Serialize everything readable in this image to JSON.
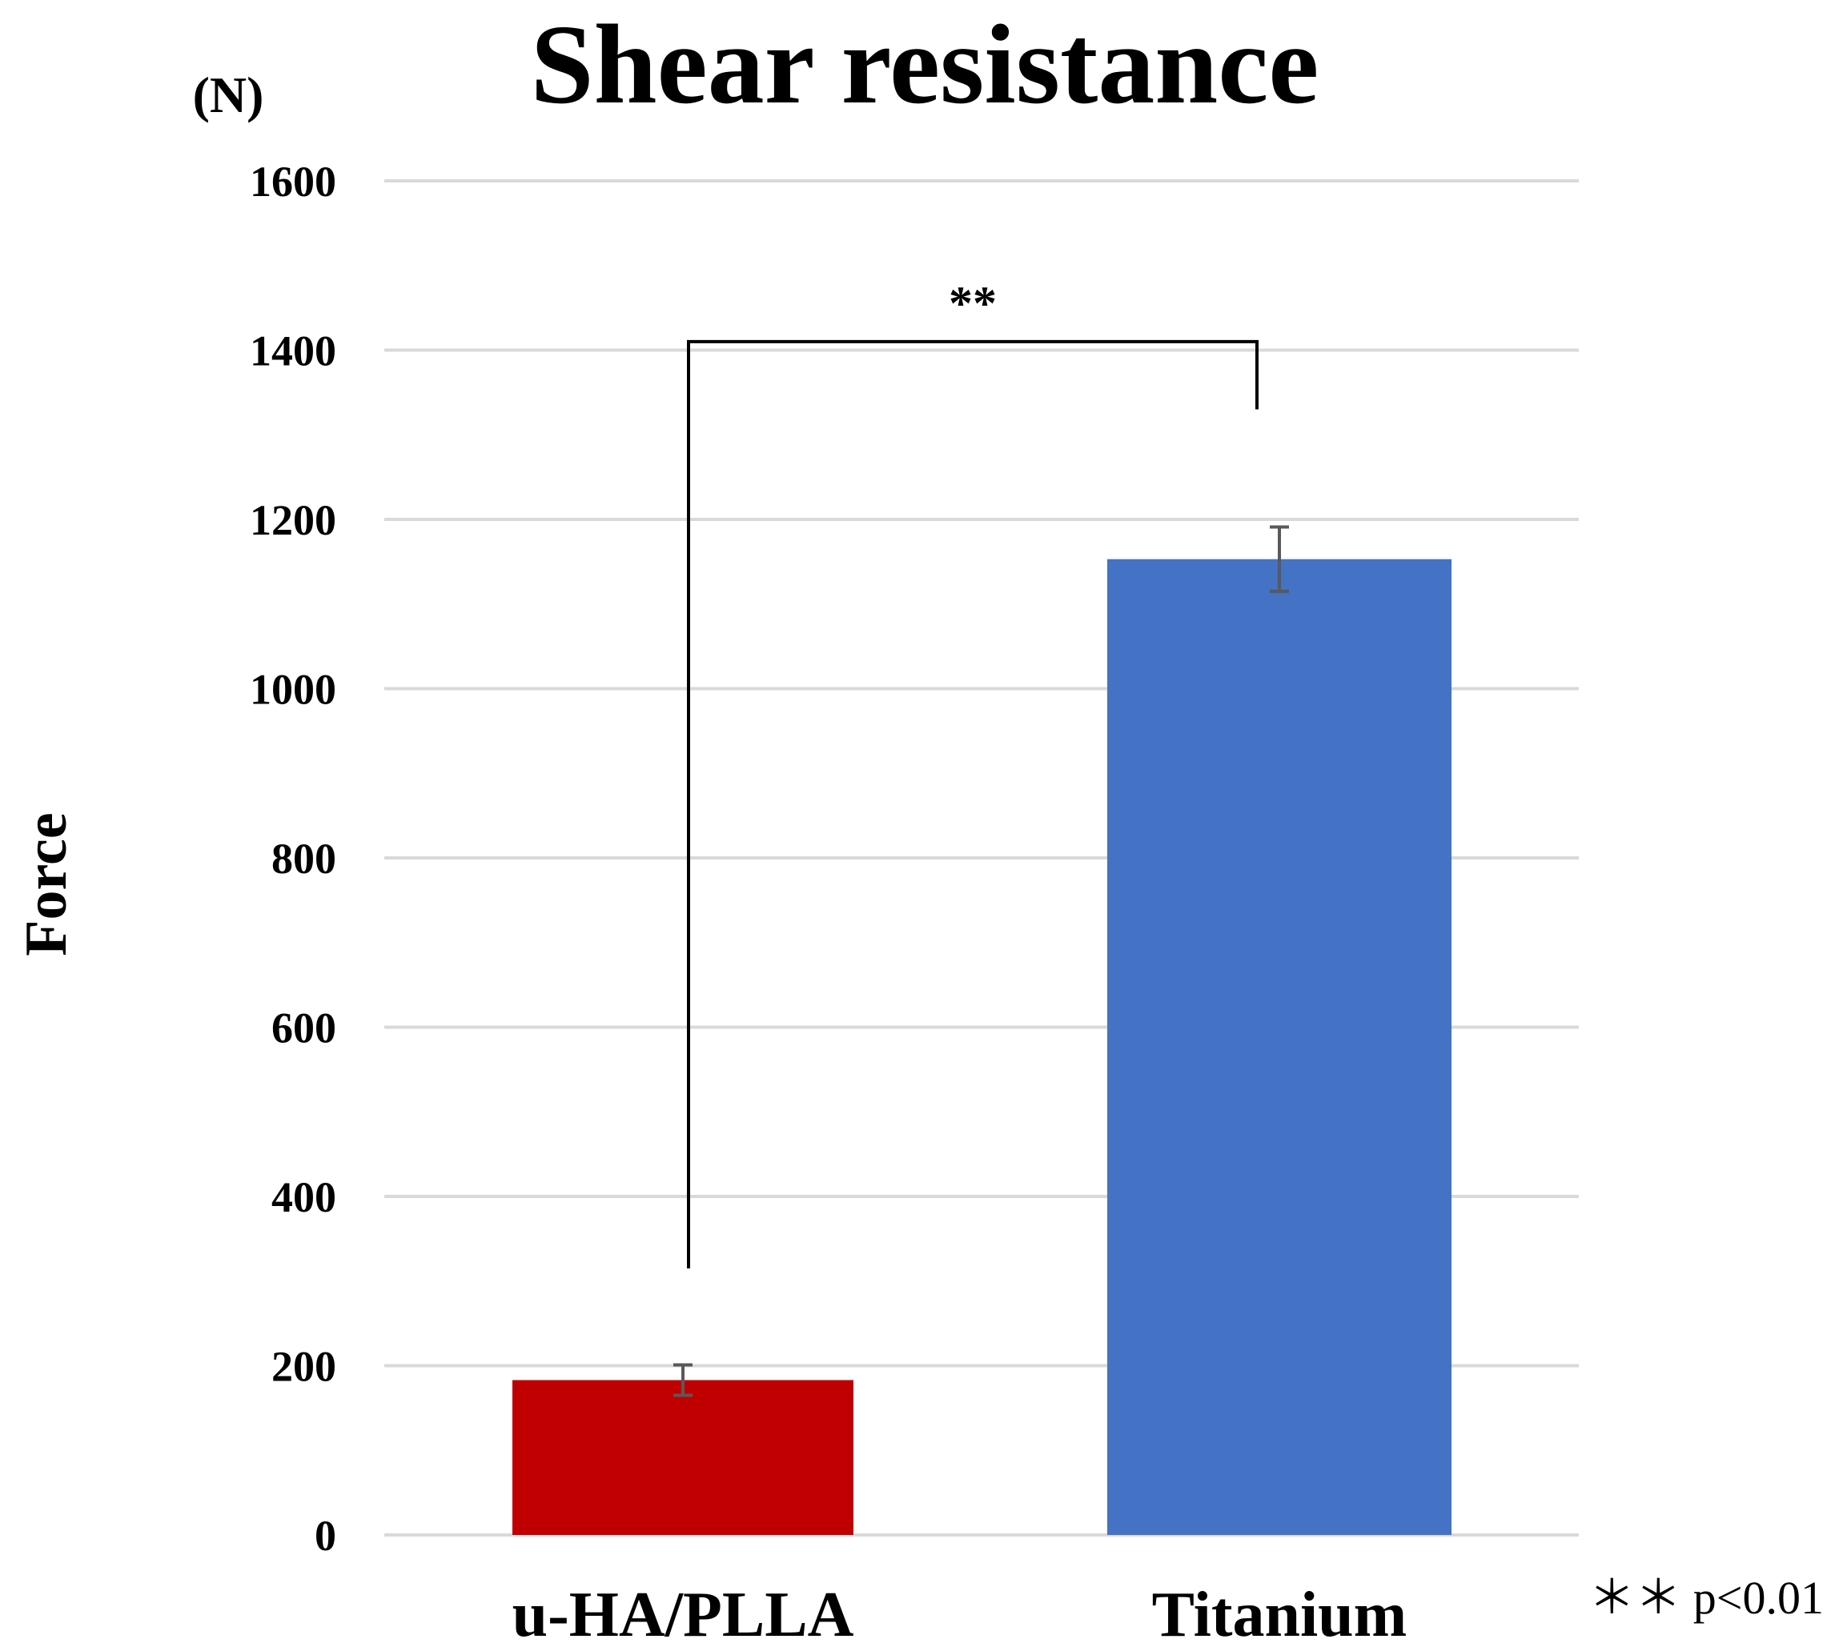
{
  "chart_data": {
    "type": "bar",
    "title": "Shear resistance",
    "unit": "(N)",
    "ylabel": "Force",
    "xlabel": "",
    "ylim": [
      0,
      1600
    ],
    "yticks": [
      0,
      200,
      400,
      600,
      800,
      1000,
      1200,
      1400,
      1600
    ],
    "ytick_labels": [
      "0",
      "200",
      "400",
      "600",
      "800",
      "1000",
      "1200",
      "1400",
      "1600"
    ],
    "grid": true,
    "categories": [
      "u-HA/PLLA",
      "Titanium"
    ],
    "values": [
      183,
      1153
    ],
    "errors": [
      18,
      38
    ],
    "colors": [
      "#c00000",
      "#4472c4"
    ],
    "significance": {
      "label": "**",
      "bracket_top": 1410,
      "left_end": 315,
      "right_end": 1330
    },
    "note": "＊＊ p<0.01"
  }
}
